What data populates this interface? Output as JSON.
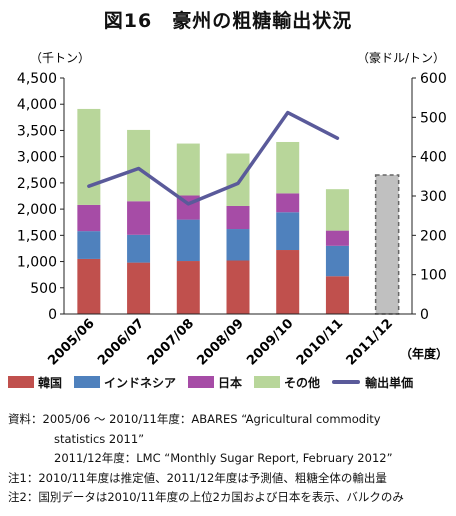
{
  "title": "図16　豪州の粗糖輸出状況",
  "chart_data": {
    "type": "bar",
    "stacked": true,
    "title": "図16　豪州の粗糖輸出状況",
    "y_left_unit": "（千トン）",
    "y_right_unit": "（豪ドル/トン）",
    "x_unit": "（年度）",
    "ylim_left": [
      0,
      4500
    ],
    "ylim_right": [
      0,
      600
    ],
    "y_left_ticks": [
      "0",
      "500",
      "1,000",
      "1,500",
      "2,000",
      "2,500",
      "3,000",
      "3,500",
      "4,000",
      "4,500"
    ],
    "y_right_ticks": [
      "0",
      "100",
      "200",
      "300",
      "400",
      "500",
      "600"
    ],
    "categories": [
      "2005/06",
      "2006/07",
      "2007/08",
      "2008/09",
      "2009/10",
      "2010/11",
      "2011/12"
    ],
    "series": [
      {
        "name": "韓国",
        "color": "#c0504d",
        "values": [
          1050,
          980,
          1010,
          1020,
          1220,
          720,
          null
        ]
      },
      {
        "name": "インドネシア",
        "color": "#4f81bd",
        "values": [
          530,
          530,
          790,
          600,
          720,
          580,
          null
        ]
      },
      {
        "name": "日本",
        "color": "#a64ca6",
        "values": [
          500,
          640,
          460,
          440,
          360,
          290,
          null
        ]
      },
      {
        "name": "その他",
        "color": "#b8d69a",
        "values": [
          1830,
          1360,
          990,
          1000,
          980,
          790,
          null
        ]
      }
    ],
    "total_estimate": {
      "category": "2011/12",
      "value": 2650,
      "fill": "#c0c0c0",
      "dashed": true
    },
    "line_series": {
      "name": "輸出単価",
      "axis": "right",
      "color": "#5a5a9a",
      "values": [
        325,
        370,
        280,
        332,
        512,
        447,
        null
      ]
    },
    "grid": false
  },
  "legend": [
    {
      "label": "韓国",
      "kind": "box",
      "color": "#c0504d"
    },
    {
      "label": "インドネシア",
      "kind": "box",
      "color": "#4f81bd"
    },
    {
      "label": "日本",
      "kind": "box",
      "color": "#a64ca6"
    },
    {
      "label": "その他",
      "kind": "box",
      "color": "#b8d69a"
    },
    {
      "label": "輸出単価",
      "kind": "line",
      "color": "#5a5a9a"
    }
  ],
  "notes": [
    {
      "text": "資料：2005/06 ～ 2010/11年度：ABARES “Agricultural commodity",
      "indent": false
    },
    {
      "text": "statistics 2011”",
      "indent": true
    },
    {
      "text": "2011/12年度：LMC “Monthly Sugar Report, February 2012”",
      "indent": true
    },
    {
      "text": "注1：2010/11年度は推定値、2011/12年度は予測値、粗糖全体の輸出量",
      "indent": false
    },
    {
      "text": "注2：国別データは2010/11年度の上位2カ国および日本を表示、バルクのみ",
      "indent": false
    }
  ]
}
